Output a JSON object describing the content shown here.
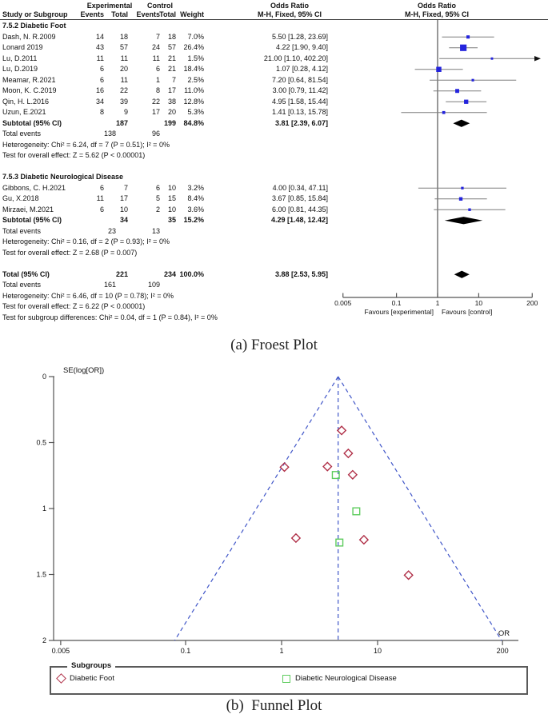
{
  "captions": {
    "a": "(a) Froest Plot",
    "b": "(b)  Funnel Plot"
  },
  "colors": {
    "marker_blue": "#2424dd",
    "ci_line": "#7d7d7d",
    "diamond_black": "#000000",
    "axis_gray": "#555555",
    "text": "#111111",
    "funnel_red": "#b03048",
    "funnel_green": "#5ecc5e",
    "funnel_dash_blue": "#4056c8"
  },
  "chart_data": [
    {
      "type": "forest",
      "effect_measure": "Odds Ratio",
      "method": "M-H, Fixed, 95% CI",
      "xscale": "log",
      "xticks": [
        "0.005",
        "0.1",
        "1",
        "10",
        "200"
      ],
      "favours_left": "Favours [experimental]",
      "favours_right": "Favours [control]",
      "columns": {
        "study": "Study or Subgroup",
        "group1": "Experimental",
        "group2": "Control",
        "events": "Events",
        "total": "Total",
        "weight": "Weight",
        "or_title": "Odds Ratio",
        "or_method": "M-H, Fixed, 95% CI"
      },
      "subgroups": [
        {
          "label": "7.5.2 Diabetic Foot",
          "studies": [
            {
              "study": "Dash, N. R.2009",
              "exp_events": "14",
              "exp_total": "18",
              "ctl_events": "7",
              "ctl_total": "18",
              "weight": "7.0%",
              "or": 5.5,
              "ci_low": 1.28,
              "ci_high": 23.69,
              "ci_text": "5.50 [1.28, 23.69]"
            },
            {
              "study": "Lonard 2019",
              "exp_events": "43",
              "exp_total": "57",
              "ctl_events": "24",
              "ctl_total": "57",
              "weight": "26.4%",
              "or": 4.22,
              "ci_low": 1.9,
              "ci_high": 9.4,
              "ci_text": "4.22 [1.90, 9.40]"
            },
            {
              "study": "Lu, D.2011",
              "exp_events": "11",
              "exp_total": "11",
              "ctl_events": "11",
              "ctl_total": "21",
              "weight": "1.5%",
              "or": 21.0,
              "ci_low": 1.1,
              "ci_high": 402.2,
              "ci_text": "21.00 [1.10, 402.20]"
            },
            {
              "study": "Lu, D.2019",
              "exp_events": "6",
              "exp_total": "20",
              "ctl_events": "6",
              "ctl_total": "21",
              "weight": "18.4%",
              "or": 1.07,
              "ci_low": 0.28,
              "ci_high": 4.12,
              "ci_text": "1.07 [0.28, 4.12]"
            },
            {
              "study": "Meamar, R.2021",
              "exp_events": "6",
              "exp_total": "11",
              "ctl_events": "1",
              "ctl_total": "7",
              "weight": "2.5%",
              "or": 7.2,
              "ci_low": 0.64,
              "ci_high": 81.54,
              "ci_text": "7.20 [0.64, 81.54]"
            },
            {
              "study": "Moon, K. C.2019",
              "exp_events": "16",
              "exp_total": "22",
              "ctl_events": "8",
              "ctl_total": "17",
              "weight": "11.0%",
              "or": 3.0,
              "ci_low": 0.79,
              "ci_high": 11.42,
              "ci_text": "3.00 [0.79, 11.42]"
            },
            {
              "study": "Qin, H. L.2016",
              "exp_events": "34",
              "exp_total": "39",
              "ctl_events": "22",
              "ctl_total": "38",
              "weight": "12.8%",
              "or": 4.95,
              "ci_low": 1.58,
              "ci_high": 15.44,
              "ci_text": "4.95 [1.58, 15.44]"
            },
            {
              "study": "Uzun, E.2021",
              "exp_events": "8",
              "exp_total": "9",
              "ctl_events": "17",
              "ctl_total": "20",
              "weight": "5.3%",
              "or": 1.41,
              "ci_low": 0.13,
              "ci_high": 15.78,
              "ci_text": "1.41 [0.13, 15.78]"
            }
          ],
          "subtotal": {
            "label": "Subtotal (95% CI)",
            "exp_total": "187",
            "ctl_total": "199",
            "weight": "84.8%",
            "or": 3.81,
            "ci_low": 2.39,
            "ci_high": 6.07,
            "ci_text": "3.81 [2.39, 6.07]"
          },
          "total_events": {
            "label": "Total events",
            "exp": "138",
            "ctl": "96"
          },
          "heterogeneity": "Heterogeneity: Chi² = 6.24, df = 7 (P = 0.51); I² = 0%",
          "overall_effect": "Test for overall effect: Z = 5.62 (P < 0.00001)"
        },
        {
          "label": "7.5.3 Diabetic Neurological Disease",
          "studies": [
            {
              "study": "Gibbons, C. H.2021",
              "exp_events": "6",
              "exp_total": "7",
              "ctl_events": "6",
              "ctl_total": "10",
              "weight": "3.2%",
              "or": 4.0,
              "ci_low": 0.34,
              "ci_high": 47.11,
              "ci_text": "4.00 [0.34, 47.11]"
            },
            {
              "study": "Gu, X.2018",
              "exp_events": "11",
              "exp_total": "17",
              "ctl_events": "5",
              "ctl_total": "15",
              "weight": "8.4%",
              "or": 3.67,
              "ci_low": 0.85,
              "ci_high": 15.84,
              "ci_text": "3.67 [0.85, 15.84]"
            },
            {
              "study": "Mirzaei, M.2021",
              "exp_events": "6",
              "exp_total": "10",
              "ctl_events": "2",
              "ctl_total": "10",
              "weight": "3.6%",
              "or": 6.0,
              "ci_low": 0.81,
              "ci_high": 44.35,
              "ci_text": "6.00 [0.81, 44.35]"
            }
          ],
          "subtotal": {
            "label": "Subtotal (95% CI)",
            "exp_total": "34",
            "ctl_total": "35",
            "weight": "15.2%",
            "or": 4.29,
            "ci_low": 1.48,
            "ci_high": 12.42,
            "ci_text": "4.29 [1.48, 12.42]"
          },
          "total_events": {
            "label": "Total events",
            "exp": "23",
            "ctl": "13"
          },
          "heterogeneity": "Heterogeneity: Chi² = 0.16, df = 2 (P = 0.93); I² = 0%",
          "overall_effect": "Test for overall effect: Z = 2.68 (P = 0.007)"
        }
      ],
      "total": {
        "label": "Total (95% CI)",
        "exp_total": "221",
        "ctl_total": "234",
        "weight": "100.0%",
        "or": 3.88,
        "ci_low": 2.53,
        "ci_high": 5.95,
        "ci_text": "3.88 [2.53, 5.95]",
        "total_events": {
          "label": "Total events",
          "exp": "161",
          "ctl": "109"
        },
        "heterogeneity": "Heterogeneity: Chi² = 6.46, df = 10 (P = 0.78); I² = 0%",
        "overall_effect": "Test for overall effect: Z = 6.22 (P < 0.00001)",
        "subgroup_diff": "Test for subgroup differences: Chi² = 0.04, df = 1 (P = 0.84), I² = 0%"
      }
    },
    {
      "type": "scatter",
      "name": "funnel",
      "ylabel": "SE(log[OR])",
      "xlabel": "OR",
      "xscale": "log",
      "xticks": [
        "0.005",
        "0.1",
        "1",
        "10",
        "200"
      ],
      "yticks": [
        "0",
        "0.5",
        "1",
        "1.5",
        "2"
      ],
      "ylim": [
        0,
        2
      ],
      "pooled_or": 3.88,
      "pseudo_ci_z": 1.96,
      "legend_title": "Subgroups",
      "series": [
        {
          "name": "Diabetic Foot",
          "marker": "diamond",
          "points": [
            {
              "or": 5.5,
              "se": 0.744
            },
            {
              "or": 4.22,
              "se": 0.408
            },
            {
              "or": 21.0,
              "se": 1.505
            },
            {
              "or": 1.07,
              "se": 0.686
            },
            {
              "or": 7.2,
              "se": 1.237
            },
            {
              "or": 3.0,
              "se": 0.682
            },
            {
              "or": 4.95,
              "se": 0.582
            },
            {
              "or": 1.41,
              "se": 1.224
            }
          ]
        },
        {
          "name": "Diabetic Neurological Disease",
          "marker": "square",
          "points": [
            {
              "or": 4.0,
              "se": 1.258
            },
            {
              "or": 3.67,
              "se": 0.746
            },
            {
              "or": 6.0,
              "se": 1.021
            }
          ]
        }
      ]
    }
  ]
}
